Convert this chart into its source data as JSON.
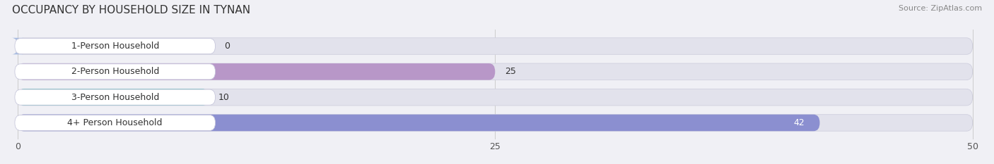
{
  "title": "OCCUPANCY BY HOUSEHOLD SIZE IN TYNAN",
  "source": "Source: ZipAtlas.com",
  "categories": [
    "1-Person Household",
    "2-Person Household",
    "3-Person Household",
    "4+ Person Household"
  ],
  "values": [
    0,
    25,
    10,
    42
  ],
  "bar_colors": [
    "#a8bce0",
    "#b897c8",
    "#52b8b5",
    "#8b8fd0"
  ],
  "xlim_max": 50,
  "xticks": [
    0,
    25,
    50
  ],
  "background_color": "#f0f0f5",
  "bar_bg_color": "#e2e2ec",
  "label_pill_color": "#ffffff",
  "grid_color": "#cccccc",
  "title_fontsize": 11,
  "label_fontsize": 9,
  "value_fontsize": 9,
  "source_fontsize": 8
}
